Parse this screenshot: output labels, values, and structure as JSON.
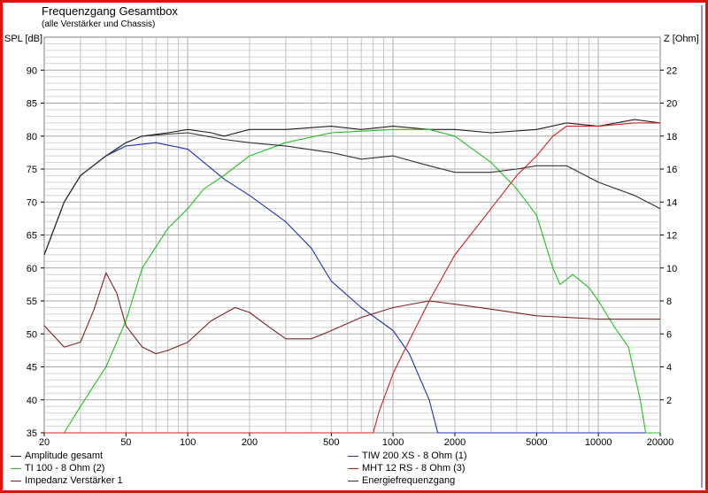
{
  "chart_data": {
    "type": "line",
    "title": "Frequenzgang Gesamtbox",
    "subtitle": "(alle Verstärker und Chassis)",
    "ylabel": "SPL [dB]",
    "y2label": "Z [Ohm]",
    "xscale": "log",
    "xlim": [
      20,
      20000
    ],
    "ylim": [
      35,
      95
    ],
    "y2lim": [
      0,
      24
    ],
    "grid": true,
    "legend_placement": "bottom",
    "xticks": [
      20,
      50,
      100,
      200,
      500,
      1000,
      2000,
      5000,
      10000,
      20000
    ],
    "yticks": [
      35,
      40,
      45,
      50,
      55,
      60,
      65,
      70,
      75,
      80,
      85,
      90
    ],
    "y2ticks": [
      2,
      4,
      6,
      8,
      10,
      12,
      14,
      16,
      18,
      20,
      22
    ],
    "series": [
      {
        "name": "Amplitude gesamt",
        "color": "#202020",
        "axis": "left",
        "x": [
          20,
          25,
          30,
          40,
          50,
          60,
          80,
          100,
          130,
          150,
          200,
          300,
          500,
          700,
          1000,
          1500,
          2000,
          3000,
          5000,
          7000,
          10000,
          15000,
          20000
        ],
        "y": [
          62,
          70,
          74,
          77,
          79,
          80,
          80.5,
          81,
          80.5,
          80,
          81,
          81,
          81.5,
          81,
          81.5,
          81,
          81,
          80.5,
          81,
          82,
          81.5,
          82.5,
          82
        ]
      },
      {
        "name": "TIW 200 XS - 8 Ohm (1)",
        "color": "#2030b0",
        "axis": "left",
        "x": [
          20,
          25,
          30,
          40,
          50,
          70,
          100,
          120,
          150,
          200,
          300,
          400,
          500,
          700,
          1000,
          1200,
          1500,
          1650,
          20000
        ],
        "y": [
          62,
          70,
          74,
          77,
          78.5,
          79,
          78,
          76,
          73.5,
          71,
          67,
          63,
          58,
          54,
          50.5,
          47,
          40,
          35,
          35
        ]
      },
      {
        "name": "TI 100 - 8 Ohm (2)",
        "color": "#20c020",
        "axis": "left",
        "x": [
          20,
          25,
          30,
          40,
          50,
          60,
          80,
          100,
          120,
          150,
          200,
          300,
          500,
          1000,
          1500,
          2000,
          3000,
          4000,
          5000,
          6000,
          6500,
          7500,
          9000,
          10000,
          12000,
          14000,
          16000,
          17000,
          20000
        ],
        "y": [
          35,
          35,
          39,
          45,
          52,
          60,
          66,
          69,
          72,
          74,
          77,
          79,
          80.5,
          81,
          81,
          80,
          76,
          72,
          68,
          60,
          57.5,
          59,
          57,
          55,
          51,
          48,
          40,
          35,
          35
        ]
      },
      {
        "name": "MHT 12 RS - 8 Ohm (3)",
        "color": "#d02020",
        "axis": "left",
        "x": [
          20,
          800,
          850,
          1000,
          1200,
          1500,
          2000,
          3000,
          4000,
          5000,
          6000,
          7000,
          10000,
          15000,
          20000
        ],
        "y": [
          35,
          35,
          38,
          44,
          49,
          55,
          62,
          69,
          74,
          77,
          80,
          81.5,
          81.5,
          82,
          82
        ]
      },
      {
        "name": "Impedanz Verstärker 1",
        "color": "#802020",
        "axis": "right",
        "x": [
          20,
          25,
          30,
          35,
          40,
          45,
          50,
          60,
          70,
          80,
          100,
          130,
          170,
          200,
          250,
          300,
          400,
          500,
          700,
          1000,
          1500,
          2000,
          3000,
          5000,
          10000,
          20000
        ],
        "y": [
          6.5,
          5.2,
          5.5,
          7.5,
          9.7,
          8.5,
          6.5,
          5.2,
          4.8,
          5,
          5.5,
          6.8,
          7.6,
          7.3,
          6.4,
          5.7,
          5.7,
          6.2,
          7.0,
          7.6,
          8.0,
          7.8,
          7.5,
          7.1,
          6.9,
          6.9
        ]
      },
      {
        "name": "Energiefrequenzgang",
        "color": "#303030",
        "axis": "left",
        "x": [
          20,
          25,
          30,
          40,
          50,
          60,
          80,
          100,
          150,
          200,
          300,
          500,
          700,
          1000,
          1500,
          2000,
          3000,
          4000,
          5000,
          7000,
          10000,
          15000,
          20000
        ],
        "y": [
          62,
          70,
          74,
          77,
          79,
          80,
          80.3,
          80.5,
          79.5,
          79,
          78.5,
          77.5,
          76.5,
          77,
          75.5,
          74.5,
          74.5,
          75,
          75.5,
          75.5,
          73,
          71,
          69
        ]
      }
    ]
  }
}
